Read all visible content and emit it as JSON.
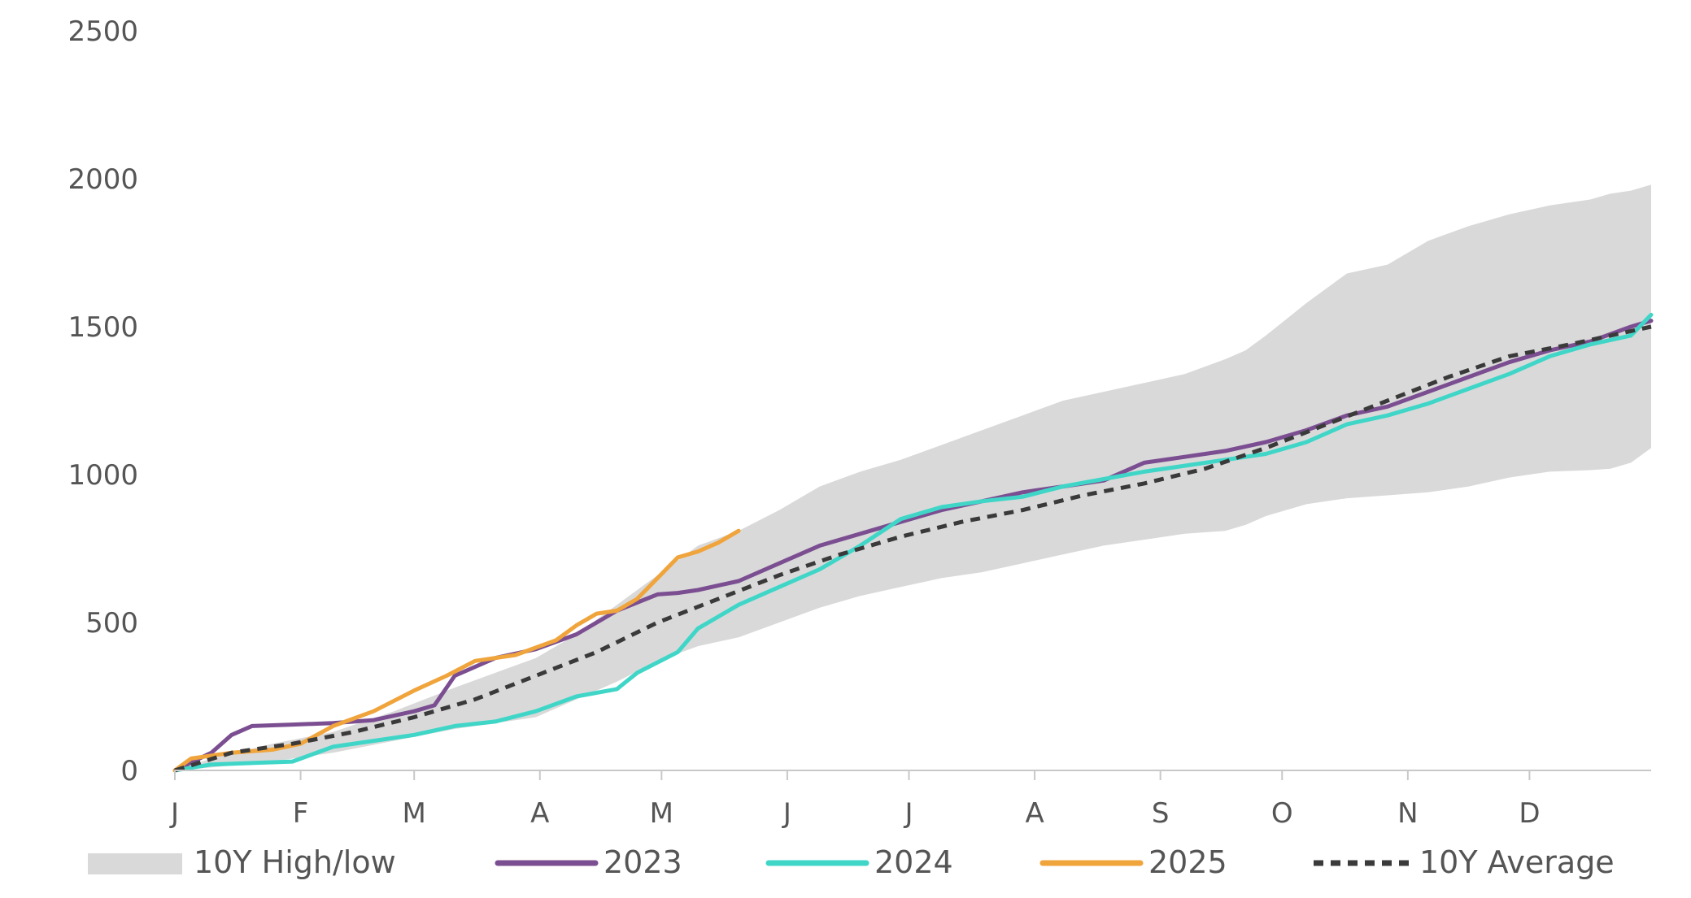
{
  "chart_data": {
    "type": "area",
    "title": "",
    "xlabel": "",
    "ylabel": "",
    "ylim": [
      0,
      2500
    ],
    "yticks": [
      0,
      500,
      1000,
      1500,
      2000,
      2500
    ],
    "xlim": [
      1,
      365
    ],
    "months": [
      {
        "label": "J",
        "day": 1
      },
      {
        "label": "F",
        "day": 32
      },
      {
        "label": "M",
        "day": 60
      },
      {
        "label": "A",
        "day": 91
      },
      {
        "label": "M",
        "day": 121
      },
      {
        "label": "J",
        "day": 152
      },
      {
        "label": "J",
        "day": 182
      },
      {
        "label": "A",
        "day": 213
      },
      {
        "label": "S",
        "day": 244
      },
      {
        "label": "O",
        "day": 274
      },
      {
        "label": "N",
        "day": 305
      },
      {
        "label": "D",
        "day": 335
      }
    ],
    "legend_position": "bottom",
    "band": {
      "name": "10Y High/low",
      "color": "#d9d9d9",
      "x": [
        1,
        10,
        25,
        40,
        55,
        70,
        90,
        100,
        110,
        120,
        130,
        140,
        150,
        160,
        170,
        180,
        190,
        200,
        210,
        220,
        230,
        240,
        250,
        260,
        265,
        270,
        280,
        290,
        300,
        310,
        320,
        330,
        340,
        350,
        355,
        360,
        365
      ],
      "high": [
        0,
        40,
        90,
        130,
        200,
        280,
        380,
        460,
        560,
        660,
        760,
        810,
        880,
        960,
        1010,
        1050,
        1100,
        1150,
        1200,
        1250,
        1280,
        1310,
        1340,
        1390,
        1420,
        1470,
        1580,
        1680,
        1710,
        1790,
        1840,
        1880,
        1910,
        1930,
        1950,
        1960,
        1980
      ],
      "low": [
        0,
        10,
        30,
        60,
        100,
        140,
        180,
        240,
        300,
        370,
        420,
        450,
        500,
        550,
        590,
        620,
        650,
        670,
        700,
        730,
        760,
        780,
        800,
        810,
        830,
        860,
        900,
        920,
        930,
        940,
        960,
        990,
        1010,
        1015,
        1020,
        1040,
        1090
      ]
    },
    "series": [
      {
        "name": "2023",
        "color": "#7b4e91",
        "dashed": false,
        "x": [
          1,
          10,
          15,
          20,
          30,
          40,
          50,
          60,
          65,
          70,
          80,
          90,
          100,
          110,
          120,
          125,
          130,
          140,
          150,
          160,
          170,
          180,
          190,
          200,
          210,
          220,
          230,
          240,
          250,
          260,
          270,
          280,
          290,
          300,
          310,
          320,
          330,
          340,
          350,
          360,
          365
        ],
        "y": [
          0,
          60,
          120,
          150,
          155,
          160,
          170,
          200,
          220,
          320,
          380,
          410,
          460,
          540,
          595,
          600,
          610,
          640,
          700,
          760,
          800,
          840,
          880,
          910,
          940,
          960,
          980,
          1040,
          1060,
          1080,
          1110,
          1150,
          1200,
          1230,
          1280,
          1330,
          1380,
          1420,
          1450,
          1500,
          1520
        ]
      },
      {
        "name": "2024",
        "color": "#3fd6c8",
        "dashed": false,
        "x": [
          1,
          10,
          20,
          30,
          40,
          50,
          60,
          70,
          80,
          90,
          100,
          110,
          115,
          125,
          130,
          140,
          150,
          160,
          170,
          180,
          190,
          200,
          210,
          220,
          230,
          240,
          250,
          260,
          270,
          280,
          290,
          300,
          310,
          320,
          330,
          340,
          350,
          360,
          365
        ],
        "y": [
          0,
          20,
          25,
          30,
          80,
          100,
          120,
          150,
          165,
          200,
          250,
          275,
          330,
          400,
          480,
          560,
          620,
          680,
          760,
          850,
          890,
          910,
          925,
          960,
          985,
          1010,
          1030,
          1050,
          1070,
          1110,
          1170,
          1200,
          1240,
          1290,
          1340,
          1400,
          1440,
          1470,
          1540
        ]
      },
      {
        "name": "2025",
        "color": "#f0a43c",
        "dashed": false,
        "x": [
          1,
          5,
          15,
          25,
          32,
          40,
          50,
          60,
          68,
          75,
          85,
          95,
          100,
          105,
          110,
          115,
          120,
          125,
          130,
          135,
          140
        ],
        "y": [
          0,
          40,
          60,
          70,
          90,
          150,
          200,
          270,
          320,
          370,
          390,
          440,
          490,
          530,
          540,
          580,
          650,
          720,
          740,
          770,
          810
        ]
      },
      {
        "name": "10Y Average",
        "color": "#3a3a3a",
        "dashed": true,
        "x": [
          1,
          15,
          30,
          45,
          60,
          75,
          90,
          105,
          120,
          135,
          150,
          165,
          180,
          195,
          210,
          225,
          240,
          255,
          270,
          285,
          300,
          315,
          330,
          345,
          365
        ],
        "y": [
          0,
          60,
          90,
          130,
          180,
          240,
          320,
          400,
          500,
          580,
          660,
          730,
          790,
          840,
          880,
          930,
          970,
          1020,
          1090,
          1170,
          1250,
          1330,
          1400,
          1440,
          1500
        ]
      }
    ]
  }
}
